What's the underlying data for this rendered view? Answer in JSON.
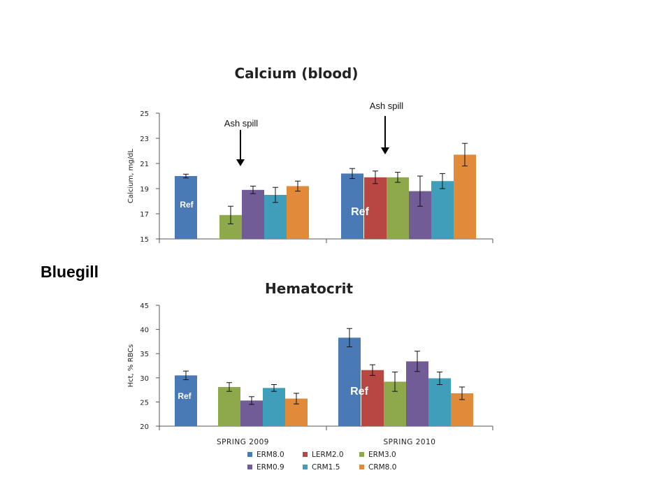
{
  "species_label": "Bluegill",
  "colors": {
    "ERM8.0": "#4a7ab5",
    "LERM2.0": "#b84643",
    "ERM3.0": "#8ea84c",
    "ERM0.9": "#725c98",
    "CRM1.5": "#3f9fba",
    "CRM8.0": "#e08a3a"
  },
  "legend": {
    "entries": [
      "ERM8.0",
      "LERM2.0",
      "ERM3.0",
      "ERM0.9",
      "CRM1.5",
      "CRM8.0"
    ],
    "placement": "bottom"
  },
  "chart_data": [
    {
      "type": "bar",
      "title": "Calcium (blood)",
      "ylabel": "Calcium, mg/dL",
      "xlabel": "",
      "ylim": [
        15,
        25
      ],
      "yticks": [
        15,
        17,
        19,
        21,
        23,
        25
      ],
      "categories": [
        "",
        ""
      ],
      "groups": [
        {
          "bars": [
            {
              "series": "ERM8.0",
              "value": 20.0,
              "err": 0.15
            },
            {
              "series": "ERM3.0",
              "value": 16.9,
              "err": 0.7
            },
            {
              "series": "ERM0.9",
              "value": 18.9,
              "err": 0.3
            },
            {
              "series": "CRM1.5",
              "value": 18.5,
              "err": 0.6
            },
            {
              "series": "CRM8.0",
              "value": 19.2,
              "err": 0.4
            }
          ],
          "ref_label": "Ref",
          "annotation": "Ash spill"
        },
        {
          "bars": [
            {
              "series": "ERM8.0",
              "value": 20.2,
              "err": 0.4
            },
            {
              "series": "LERM2.0",
              "value": 19.9,
              "err": 0.5
            },
            {
              "series": "ERM3.0",
              "value": 19.9,
              "err": 0.4
            },
            {
              "series": "ERM0.9",
              "value": 18.8,
              "err": 1.2
            },
            {
              "series": "CRM1.5",
              "value": 19.6,
              "err": 0.6
            },
            {
              "series": "CRM8.0",
              "value": 21.7,
              "err": 0.9
            }
          ],
          "ref_label": "Ref",
          "annotation": "Ash spill"
        }
      ],
      "grid": false
    },
    {
      "type": "bar",
      "title": "Hematocrit",
      "ylabel": "Hct, % RBCs",
      "xlabel": "",
      "ylim": [
        20,
        45
      ],
      "yticks": [
        20,
        25,
        30,
        35,
        40,
        45
      ],
      "categories": [
        "SPRING 2009",
        "SPRING 2010"
      ],
      "groups": [
        {
          "bars": [
            {
              "series": "ERM8.0",
              "value": 30.5,
              "err": 0.9
            },
            {
              "series": "ERM3.0",
              "value": 28.1,
              "err": 0.9
            },
            {
              "series": "ERM0.9",
              "value": 25.3,
              "err": 0.8
            },
            {
              "series": "CRM1.5",
              "value": 27.9,
              "err": 0.7
            },
            {
              "series": "CRM8.0",
              "value": 25.7,
              "err": 1.1
            }
          ],
          "ref_label": "Ref"
        },
        {
          "bars": [
            {
              "series": "ERM8.0",
              "value": 38.3,
              "err": 1.9
            },
            {
              "series": "LERM2.0",
              "value": 31.6,
              "err": 1.1
            },
            {
              "series": "ERM3.0",
              "value": 29.2,
              "err": 2.0
            },
            {
              "series": "ERM0.9",
              "value": 33.4,
              "err": 2.1
            },
            {
              "series": "CRM1.5",
              "value": 29.9,
              "err": 1.3
            },
            {
              "series": "CRM8.0",
              "value": 26.8,
              "err": 1.3
            }
          ],
          "ref_label": "Ref"
        }
      ],
      "grid": false
    }
  ]
}
